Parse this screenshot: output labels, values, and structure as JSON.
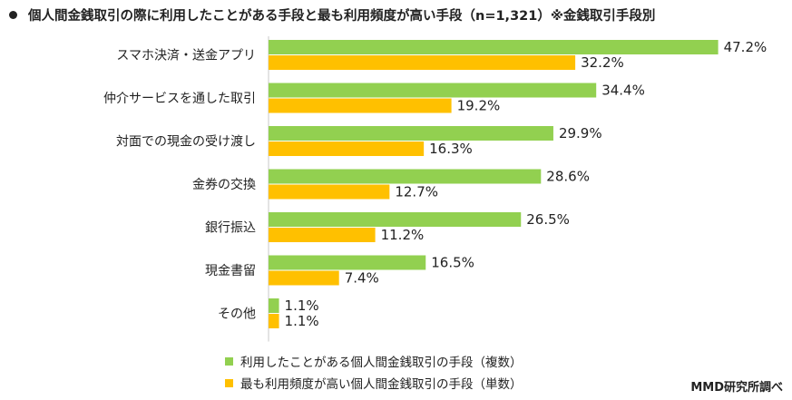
{
  "title": "個人間金銭取引の際に利用したことがある手段と最も利用頻度が高い手段（n=1,321）※金銭取引手段別",
  "source": "MMD研究所調べ",
  "colors": {
    "series1": "#92d050",
    "series2": "#ffc000",
    "axis": "#c8c8c8"
  },
  "legend": [
    {
      "label": "利用したことがある個人間金銭取引の手段（複数）"
    },
    {
      "label": "最も利用頻度が高い個人間金銭取引の手段（単数）"
    }
  ],
  "chart_data": {
    "type": "bar",
    "orientation": "horizontal",
    "title": "個人間金銭取引の際に利用したことがある手段と最も利用頻度が高い手段（n=1,321）※金銭取引手段別",
    "categories": [
      "スマホ決済・送金アプリ",
      "仲介サービスを通した取引",
      "対面での現金の受け渡し",
      "金券の交換",
      "銀行振込",
      "現金書留",
      "その他"
    ],
    "series": [
      {
        "name": "利用したことがある個人間金銭取引の手段（複数）",
        "values": [
          47.2,
          34.4,
          29.9,
          28.6,
          26.5,
          16.5,
          1.1
        ],
        "labels": [
          "47.2%",
          "34.4%",
          "29.9%",
          "28.6%",
          "26.5%",
          "16.5%",
          "1.1%"
        ]
      },
      {
        "name": "最も利用頻度が高い個人間金銭取引の手段（単数）",
        "values": [
          32.2,
          19.2,
          16.3,
          12.7,
          11.2,
          7.4,
          1.1
        ],
        "labels": [
          "32.2%",
          "19.2%",
          "16.3%",
          "12.7%",
          "11.2%",
          "7.4%",
          "1.1%"
        ]
      }
    ],
    "xlim": [
      0,
      50
    ],
    "grid": false,
    "legend_position": "bottom"
  }
}
